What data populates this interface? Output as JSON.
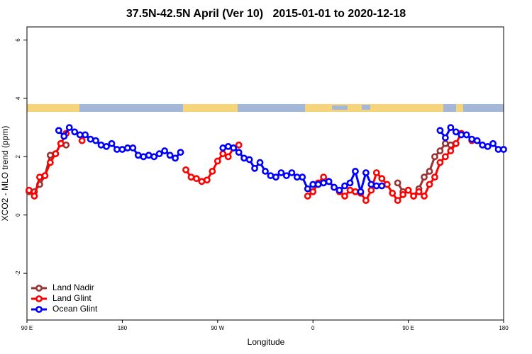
{
  "chart_data": {
    "type": "line",
    "title": "37.5N-42.5N April (Ver 10)   2015-01-01 to 2020-12-18",
    "x_label": "Longitude",
    "y_label": "XCO2 - MLO trend (ppm)",
    "xlim": [
      90,
      540
    ],
    "ylim": [
      -3.6,
      6.45
    ],
    "xticks": [
      {
        "value": 90,
        "label": "90 E"
      },
      {
        "value": 180,
        "label": "180"
      },
      {
        "value": 270,
        "label": "90 W"
      },
      {
        "value": 360,
        "label": "0"
      },
      {
        "value": 450,
        "label": "90 E"
      },
      {
        "value": 540,
        "label": "180"
      }
    ],
    "yticks": [
      -2,
      0,
      2,
      4,
      6
    ],
    "legend": "bottom-left",
    "series": [
      {
        "name": "Land Nadir",
        "color": "#993333",
        "x": [
          92,
          97,
          102,
          107,
          112,
          117,
          122,
          127,
          300,
          440,
          445,
          450,
          455,
          460,
          465,
          470,
          475,
          480,
          485,
          490
        ],
        "values": [
          0.8,
          0.8,
          1.05,
          1.35,
          2.05,
          2.1,
          2.45,
          2.4,
          null,
          1.1,
          0.8,
          0.85,
          0.65,
          0.9,
          1.3,
          1.5,
          2.0,
          2.2,
          2.45,
          2.4
        ]
      },
      {
        "name": "Land Glint",
        "color": "#ff0000",
        "x": [
          92,
          97,
          102,
          107,
          112,
          117,
          122,
          127,
          135,
          142,
          190,
          240,
          245,
          250,
          255,
          260,
          265,
          270,
          275,
          280,
          285,
          290,
          320,
          355,
          360,
          365,
          370,
          375,
          380,
          385,
          390,
          395,
          400,
          405,
          410,
          415,
          420,
          425,
          430,
          435,
          440,
          445,
          450,
          455,
          460,
          465,
          470,
          475,
          480,
          485,
          490,
          495,
          500,
          505,
          510
        ],
        "values": [
          0.85,
          0.65,
          1.3,
          1.35,
          1.8,
          2.1,
          2.45,
          2.8,
          null,
          2.55,
          null,
          1.55,
          1.3,
          1.25,
          1.15,
          1.2,
          1.5,
          1.85,
          2.1,
          2.0,
          2.3,
          2.4,
          null,
          0.65,
          0.8,
          1.1,
          1.3,
          1.15,
          0.95,
          0.8,
          0.65,
          0.85,
          0.8,
          0.75,
          0.5,
          0.85,
          1.45,
          1.25,
          1.05,
          0.75,
          0.5,
          0.7,
          0.85,
          0.65,
          0.8,
          0.65,
          1.05,
          1.3,
          1.8,
          2.0,
          2.2,
          2.45,
          2.8,
          null,
          2.55
        ]
      },
      {
        "name": "Ocean Glint",
        "color": "#0000ff",
        "x": [
          120,
          125,
          130,
          135,
          140,
          145,
          150,
          155,
          160,
          165,
          170,
          175,
          180,
          185,
          190,
          195,
          200,
          205,
          210,
          215,
          220,
          225,
          230,
          235,
          255,
          275,
          280,
          285,
          290,
          295,
          300,
          305,
          310,
          315,
          320,
          325,
          330,
          335,
          340,
          345,
          350,
          355,
          360,
          365,
          370,
          375,
          380,
          385,
          390,
          395,
          400,
          405,
          410,
          415,
          420,
          425,
          450,
          480,
          485,
          490,
          495,
          500,
          505,
          510,
          515,
          520,
          525,
          530,
          535,
          540
        ],
        "values": [
          2.9,
          2.7,
          3.0,
          2.85,
          2.75,
          2.75,
          2.6,
          2.55,
          2.4,
          2.35,
          2.45,
          2.25,
          2.25,
          2.3,
          2.3,
          2.05,
          2.0,
          2.05,
          2.0,
          2.1,
          2.2,
          2.05,
          1.95,
          2.15,
          null,
          2.3,
          2.35,
          2.3,
          2.15,
          1.95,
          1.9,
          1.6,
          1.8,
          1.5,
          1.35,
          1.3,
          1.45,
          1.35,
          1.45,
          1.3,
          1.3,
          0.9,
          1.05,
          1.05,
          1.1,
          1.15,
          0.95,
          0.85,
          1.0,
          1.1,
          1.5,
          0.8,
          1.45,
          1.05,
          1.0,
          1.0,
          null,
          2.9,
          2.65,
          3.0,
          2.85,
          2.75,
          2.75,
          2.6,
          2.55,
          2.4,
          2.35,
          2.45,
          2.25,
          2.25
        ]
      }
    ]
  }
}
